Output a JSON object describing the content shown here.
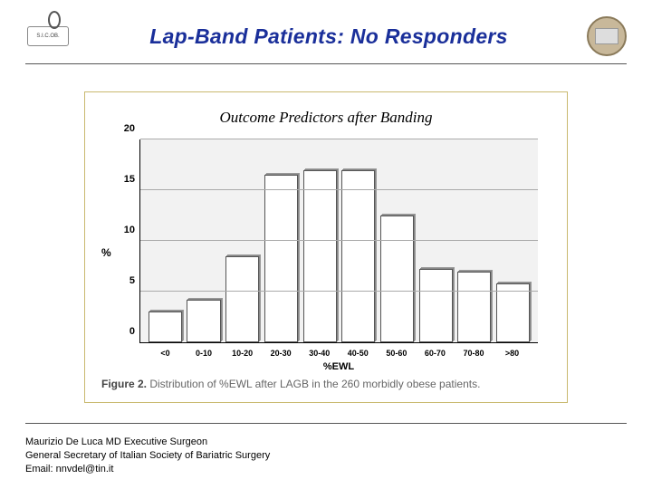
{
  "header": {
    "left_logo_text": "S.I.C.OB.",
    "title": "Lap-Band Patients: No Responders",
    "title_color": "#1a2f9a"
  },
  "figure": {
    "box_border_color": "#c9b96f",
    "chart_title": "Outcome Predictors after Banding",
    "ylabel": "%",
    "xlabel": "%EWL",
    "plot_background": "#f2f2f2",
    "bar_fill": "#ffffff",
    "bar_border": "#555555",
    "grid_color": "#aaaaaa",
    "axis_color": "#000000",
    "ylim": [
      0,
      20
    ],
    "yticks": [
      0,
      5,
      10,
      15,
      20
    ],
    "ytick_fontsize": 11,
    "xtick_fontsize": 9,
    "categories": [
      "<0",
      "0-10",
      "10-20",
      "20-30",
      "30-40",
      "40-50",
      "50-60",
      "60-70",
      "70-80",
      ">80"
    ],
    "values": [
      3,
      4.2,
      8.5,
      16.5,
      17,
      17,
      12.5,
      7.2,
      7,
      5.8
    ],
    "caption_bold": "Figure 2.",
    "caption_rest": " Distribution of %EWL after LAGB in the 260 morbidly obese patients.",
    "caption_color": "#666666"
  },
  "footer": {
    "line1": "Maurizio De Luca MD Executive Surgeon",
    "line2": "General Secretary of Italian Society of Bariatric Surgery",
    "line3": "Email: nnvdel@tin.it"
  }
}
